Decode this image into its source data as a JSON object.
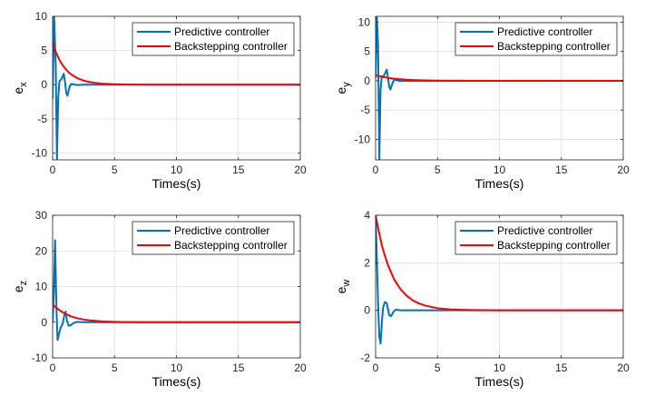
{
  "chart_data": [
    {
      "type": "line",
      "ylabel": "e",
      "ylabel_sub": "x",
      "xlabel": "Times(s)",
      "xlim": [
        0,
        20
      ],
      "ylim": [
        -11,
        10
      ],
      "xticks": [
        0,
        5,
        10,
        15,
        20
      ],
      "yticks": [
        -10,
        -5,
        0,
        5,
        10
      ],
      "xtick_labels": [
        "0",
        "5",
        "10",
        "15",
        "20"
      ],
      "ytick_labels": [
        "-10",
        "-5",
        "0",
        "5",
        "10"
      ],
      "grid": true,
      "legend": "top-right",
      "series": [
        {
          "name": "Predictive controller",
          "color": "#0072BD",
          "x": [
            0,
            0.12,
            0.25,
            0.35,
            0.45,
            0.55,
            0.7,
            0.9,
            1.0,
            1.1,
            1.2,
            1.35,
            1.5,
            1.7,
            2.0,
            2.5,
            3,
            4,
            5,
            20
          ],
          "y": [
            -2,
            10,
            3,
            -11,
            -2,
            0.5,
            0.8,
            1.6,
            0.4,
            -1.2,
            -1.6,
            -0.4,
            0.1,
            0.05,
            -0.05,
            0.0,
            0.0,
            0,
            0,
            0
          ]
        },
        {
          "name": "Backstepping controller",
          "color": "#FF0000",
          "x": [
            0,
            0.1,
            0.25,
            0.5,
            0.75,
            1,
            1.25,
            1.5,
            2,
            2.5,
            3,
            3.5,
            4,
            5,
            6,
            8,
            10,
            15,
            20
          ],
          "y": [
            6.1,
            5.5,
            4.8,
            3.8,
            3.0,
            2.4,
            1.9,
            1.5,
            0.95,
            0.6,
            0.38,
            0.24,
            0.15,
            0.06,
            0.02,
            0.0,
            0,
            0,
            0
          ]
        }
      ]
    },
    {
      "type": "line",
      "ylabel": "e",
      "ylabel_sub": "y",
      "xlabel": "Times(s)",
      "xlim": [
        0,
        20
      ],
      "ylim": [
        -13.5,
        11
      ],
      "xticks": [
        0,
        5,
        10,
        15,
        20
      ],
      "yticks": [
        -10,
        -5,
        0,
        5,
        10
      ],
      "xtick_labels": [
        "0",
        "5",
        "10",
        "15",
        "20"
      ],
      "ytick_labels": [
        "-10",
        "-5",
        "0",
        "5",
        "10"
      ],
      "grid": true,
      "legend": "top-right",
      "series": [
        {
          "name": "Predictive controller",
          "color": "#0072BD",
          "x": [
            0,
            0.1,
            0.2,
            0.3,
            0.4,
            0.5,
            0.6,
            0.75,
            0.9,
            1.0,
            1.1,
            1.2,
            1.35,
            1.5,
            1.7,
            2.0,
            2.5,
            3,
            4,
            20
          ],
          "y": [
            0.5,
            11,
            6,
            -13.5,
            -1.5,
            0.8,
            0.6,
            1.2,
            1.9,
            0.5,
            -1.0,
            -1.5,
            -0.5,
            0.2,
            0.1,
            -0.05,
            0.0,
            0,
            0,
            0
          ]
        },
        {
          "name": "Backstepping controller",
          "color": "#FF0000",
          "x": [
            0,
            0.5,
            1,
            1.5,
            2,
            2.5,
            3,
            4,
            5,
            6,
            8,
            10,
            15,
            20
          ],
          "y": [
            0.95,
            0.7,
            0.5,
            0.36,
            0.26,
            0.18,
            0.13,
            0.07,
            0.03,
            0.015,
            0,
            0,
            0,
            0
          ]
        }
      ]
    },
    {
      "type": "line",
      "ylabel": "e",
      "ylabel_sub": "z",
      "xlabel": "Times(s)",
      "xlim": [
        0,
        20
      ],
      "ylim": [
        -10,
        30
      ],
      "xticks": [
        0,
        5,
        10,
        15,
        20
      ],
      "yticks": [
        -10,
        0,
        10,
        20,
        30
      ],
      "xtick_labels": [
        "0",
        "5",
        "10",
        "15",
        "20"
      ],
      "ytick_labels": [
        "-10",
        "0",
        "10",
        "20",
        "30"
      ],
      "grid": true,
      "legend": "top-right",
      "series": [
        {
          "name": "Predictive controller",
          "color": "#0072BD",
          "x": [
            0,
            0.1,
            0.2,
            0.3,
            0.4,
            0.5,
            0.65,
            0.8,
            0.95,
            1.05,
            1.15,
            1.3,
            1.5,
            1.7,
            2.0,
            2.5,
            3,
            4,
            20
          ],
          "y": [
            0,
            8,
            23,
            5,
            -5,
            -3.5,
            -1.5,
            -0.5,
            2,
            3,
            0.5,
            -1.0,
            -0.8,
            -0.2,
            0.1,
            0.0,
            0,
            0,
            0
          ]
        },
        {
          "name": "Backstepping controller",
          "color": "#FF0000",
          "x": [
            0,
            0.25,
            0.5,
            0.75,
            1,
            1.5,
            2,
            2.5,
            3,
            4,
            5,
            6,
            8,
            10,
            15,
            20
          ],
          "y": [
            5,
            4.2,
            3.5,
            2.9,
            2.4,
            1.6,
            1.1,
            0.75,
            0.5,
            0.22,
            0.1,
            0.04,
            0.0,
            0,
            0,
            0
          ]
        }
      ]
    },
    {
      "type": "line",
      "ylabel": "e",
      "ylabel_sub": "w",
      "xlabel": "Times(s)",
      "xlim": [
        0,
        20
      ],
      "ylim": [
        -2,
        4
      ],
      "xticks": [
        0,
        5,
        10,
        15,
        20
      ],
      "yticks": [
        -2,
        0,
        2,
        4
      ],
      "xtick_labels": [
        "0",
        "5",
        "10",
        "15",
        "20"
      ],
      "ytick_labels": [
        "-2",
        "0",
        "2",
        "4"
      ],
      "grid": true,
      "legend": "top-right",
      "series": [
        {
          "name": "Predictive controller",
          "color": "#0072BD",
          "x": [
            0,
            0.1,
            0.2,
            0.3,
            0.4,
            0.5,
            0.6,
            0.75,
            0.9,
            1.0,
            1.1,
            1.25,
            1.4,
            1.6,
            1.8,
            2.0,
            2.5,
            3,
            4,
            20
          ],
          "y": [
            4,
            2.2,
            0.3,
            -1.1,
            -1.4,
            -0.6,
            0.1,
            0.35,
            0.3,
            0.05,
            -0.2,
            -0.25,
            -0.1,
            0.02,
            0.02,
            0.0,
            0,
            0,
            0,
            0
          ]
        },
        {
          "name": "Backstepping controller",
          "color": "#FF0000",
          "x": [
            0,
            0.25,
            0.5,
            0.75,
            1,
            1.25,
            1.5,
            2,
            2.5,
            3,
            3.5,
            4,
            5,
            6,
            7,
            8,
            10,
            15,
            20
          ],
          "y": [
            4,
            3.35,
            2.75,
            2.3,
            1.9,
            1.6,
            1.3,
            0.9,
            0.62,
            0.42,
            0.29,
            0.2,
            0.09,
            0.04,
            0.02,
            0.01,
            0,
            0,
            0
          ]
        }
      ]
    }
  ]
}
